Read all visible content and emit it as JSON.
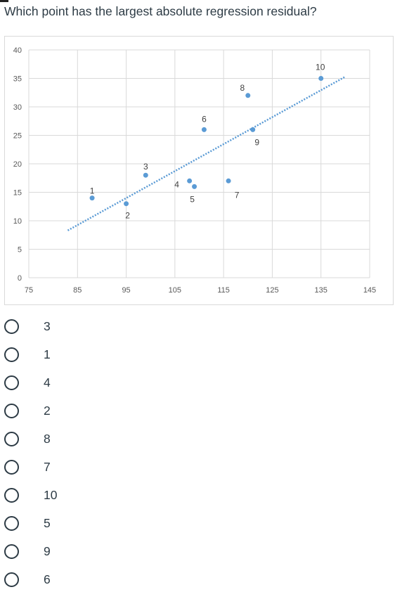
{
  "question": "Which point has the largest absolute regression residual?",
  "chart_data": {
    "type": "scatter",
    "title": "",
    "xlabel": "",
    "ylabel": "",
    "xlim": [
      75,
      145
    ],
    "ylim": [
      0,
      40
    ],
    "x_ticks": [
      "75",
      "85",
      "95",
      "105",
      "115",
      "125",
      "135",
      "145"
    ],
    "y_ticks": [
      "0",
      "5",
      "10",
      "15",
      "20",
      "25",
      "30",
      "35",
      "40"
    ],
    "grid": true,
    "points": [
      {
        "label": "1",
        "x": 88,
        "y": 14
      },
      {
        "label": "2",
        "x": 95,
        "y": 13
      },
      {
        "label": "3",
        "x": 99,
        "y": 18
      },
      {
        "label": "4",
        "x": 108,
        "y": 17
      },
      {
        "label": "5",
        "x": 109,
        "y": 16
      },
      {
        "label": "6",
        "x": 111,
        "y": 26
      },
      {
        "label": "7",
        "x": 116,
        "y": 17
      },
      {
        "label": "8",
        "x": 120,
        "y": 32
      },
      {
        "label": "9",
        "x": 121,
        "y": 26
      },
      {
        "label": "10",
        "x": 135,
        "y": 35
      }
    ],
    "trendline": {
      "x": [
        83,
        140
      ],
      "y": [
        8.3,
        35.3
      ]
    },
    "colors": {
      "point": "#5b9bd5",
      "trend": "#5b9bd5",
      "grid": "#d9d9d9"
    }
  },
  "options": [
    "3",
    "1",
    "4",
    "2",
    "8",
    "7",
    "10",
    "5",
    "9",
    "6"
  ]
}
